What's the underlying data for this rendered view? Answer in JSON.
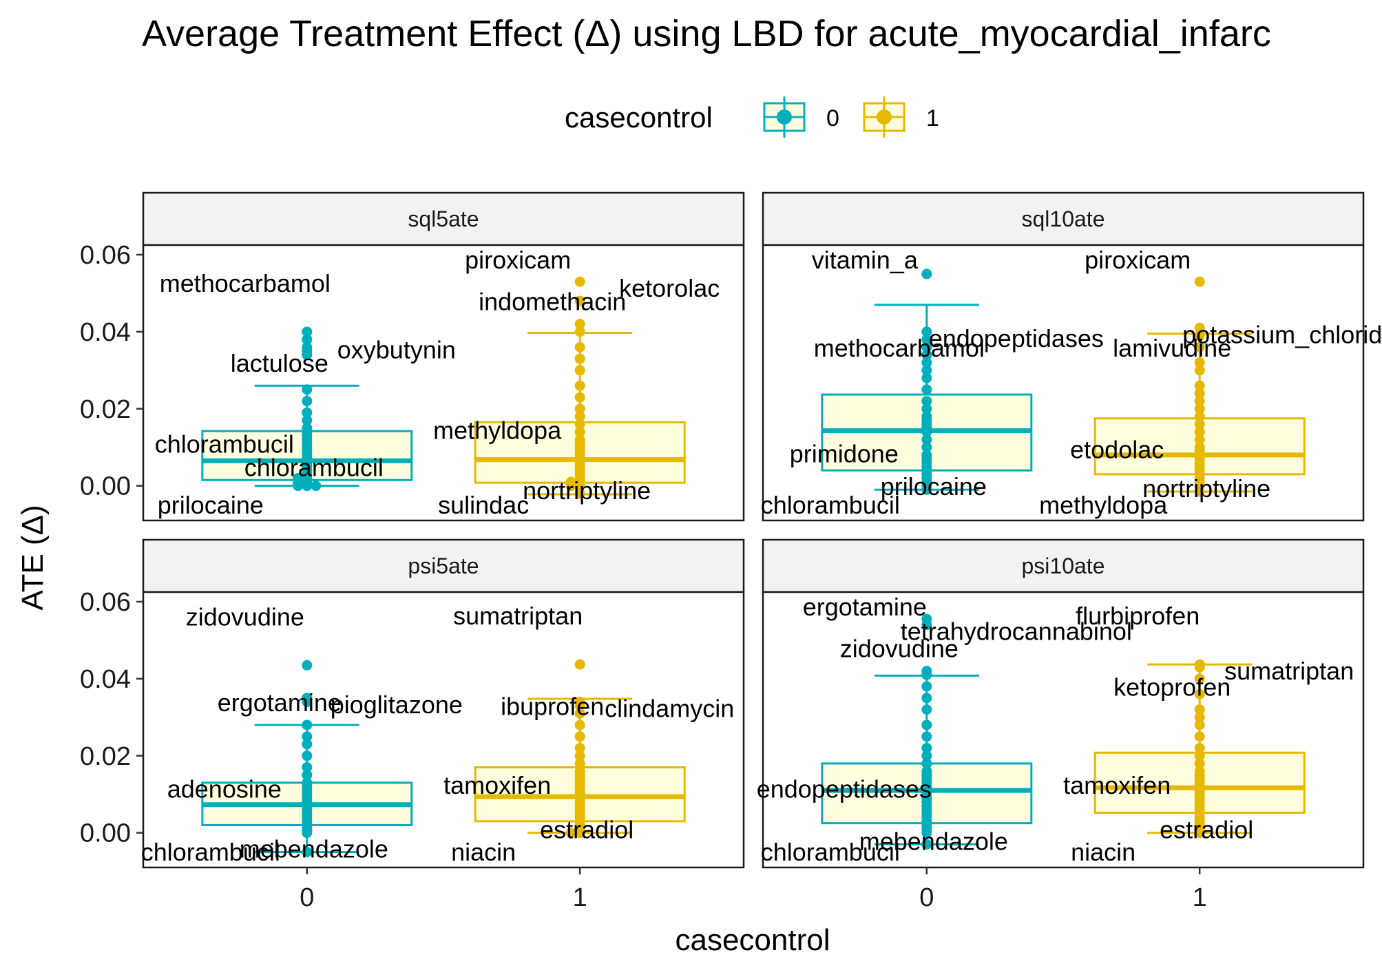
{
  "chart_data": {
    "type": "boxplot",
    "title": "Average Treatment Effect (Δ) using LBD for acute_myocardial_infarc",
    "xlabel": "casecontrol",
    "ylabel": "ATE (Δ)",
    "categories": [
      "0",
      "1"
    ],
    "ylim": [
      -0.009,
      0.0625
    ],
    "yticks": [
      0.0,
      0.02,
      0.04,
      0.06
    ],
    "ytick_labels": [
      "0.00",
      "0.02",
      "0.04",
      "0.06"
    ],
    "grid": false,
    "legend": {
      "title": "casecontrol",
      "position": "top",
      "entries": [
        {
          "label": "0",
          "color": "#00AFBB"
        },
        {
          "label": "1",
          "color": "#E7B800"
        }
      ]
    },
    "box_fill": "#FFFFE0",
    "panels": [
      {
        "name": "sql5ate",
        "groups": [
          {
            "category": "0",
            "color": "#00AFBB",
            "box": {
              "q1": 0.0015,
              "median": 0.0065,
              "q3": 0.0142,
              "whisker_low": 0.0,
              "whisker_high": 0.026
            },
            "points": [
              0.0,
              0.0,
              0.0,
              0.0005,
              0.0005,
              0.001,
              0.001,
              0.0015,
              0.002,
              0.002,
              0.003,
              0.004,
              0.005,
              0.006,
              0.007,
              0.008,
              0.009,
              0.01,
              0.011,
              0.012,
              0.013,
              0.014,
              0.015,
              0.017,
              0.019,
              0.022,
              0.025,
              0.034,
              0.035,
              0.036,
              0.038,
              0.04
            ],
            "annotations": [
              {
                "text": "methocarbamol",
                "y": 0.04
              },
              {
                "text": "oxybutynin",
                "y": 0.037
              },
              {
                "text": "lactulose",
                "y": 0.026
              },
              {
                "text": "chlorambucil",
                "y": 0.0065
              },
              {
                "text": "chlorambucil",
                "y": 0.004
              },
              {
                "text": "prilocaine",
                "y": 0.0
              }
            ]
          },
          {
            "category": "1",
            "color": "#E7B800",
            "box": {
              "q1": 0.0008,
              "median": 0.0068,
              "q3": 0.0165,
              "whisker_low": -0.0022,
              "whisker_high": 0.0397
            },
            "points": [
              -0.002,
              0.0,
              0.0,
              0.0005,
              0.001,
              0.001,
              0.002,
              0.003,
              0.004,
              0.005,
              0.006,
              0.007,
              0.008,
              0.009,
              0.01,
              0.011,
              0.012,
              0.014,
              0.016,
              0.018,
              0.02,
              0.023,
              0.026,
              0.03,
              0.033,
              0.036,
              0.04,
              0.042,
              0.048,
              0.053
            ],
            "annotations": [
              {
                "text": "piroxicam",
                "y": 0.053
              },
              {
                "text": "ketorolac",
                "y": 0.053
              },
              {
                "text": "indomethacin",
                "y": 0.042
              },
              {
                "text": "methyldopa",
                "y": 0.01
              },
              {
                "text": "nortriptyline",
                "y": -0.002
              },
              {
                "text": "sulindac",
                "y": -0.002
              }
            ]
          }
        ]
      },
      {
        "name": "sql10ate",
        "groups": [
          {
            "category": "0",
            "color": "#00AFBB",
            "box": {
              "q1": 0.004,
              "median": 0.0143,
              "q3": 0.0237,
              "whisker_low": -0.001,
              "whisker_high": 0.047
            },
            "points": [
              -0.001,
              0.0,
              0.001,
              0.002,
              0.003,
              0.004,
              0.005,
              0.006,
              0.007,
              0.008,
              0.01,
              0.012,
              0.014,
              0.015,
              0.016,
              0.017,
              0.018,
              0.02,
              0.022,
              0.025,
              0.028,
              0.03,
              0.032,
              0.034,
              0.036,
              0.038,
              0.04,
              0.055
            ],
            "annotations": [
              {
                "text": "vitamin_a",
                "y": 0.055
              },
              {
                "text": "endopeptidases",
                "y": 0.04
              },
              {
                "text": "methocarbamol",
                "y": 0.03
              },
              {
                "text": "primidone",
                "y": 0.004
              },
              {
                "text": "prilocaine",
                "y": -0.001
              },
              {
                "text": "chlorambucil",
                "y": -0.001
              }
            ]
          },
          {
            "category": "1",
            "color": "#E7B800",
            "box": {
              "q1": 0.003,
              "median": 0.008,
              "q3": 0.0175,
              "whisker_low": -0.0015,
              "whisker_high": 0.0395
            },
            "points": [
              -0.0015,
              0.0,
              0.001,
              0.002,
              0.003,
              0.004,
              0.005,
              0.006,
              0.007,
              0.008,
              0.009,
              0.01,
              0.012,
              0.014,
              0.016,
              0.018,
              0.02,
              0.022,
              0.024,
              0.026,
              0.03,
              0.032,
              0.036,
              0.039,
              0.041,
              0.053
            ],
            "annotations": [
              {
                "text": "piroxicam",
                "y": 0.053
              },
              {
                "text": "potassium_chloride",
                "y": 0.041
              },
              {
                "text": "lamivudine",
                "y": 0.03
              },
              {
                "text": "etodolac",
                "y": 0.005
              },
              {
                "text": "nortriptyline",
                "y": -0.0015
              },
              {
                "text": "methyldopa",
                "y": -0.0015
              }
            ]
          }
        ]
      },
      {
        "name": "psi5ate",
        "groups": [
          {
            "category": "0",
            "color": "#00AFBB",
            "box": {
              "q1": 0.002,
              "median": 0.0073,
              "q3": 0.013,
              "whisker_low": -0.005,
              "whisker_high": 0.028
            },
            "points": [
              -0.005,
              0.0,
              0.0005,
              0.001,
              0.002,
              0.003,
              0.004,
              0.005,
              0.006,
              0.007,
              0.008,
              0.009,
              0.01,
              0.011,
              0.012,
              0.013,
              0.015,
              0.017,
              0.02,
              0.023,
              0.025,
              0.028,
              0.034,
              0.035,
              0.0435
            ],
            "annotations": [
              {
                "text": "zidovudine",
                "y": 0.0435
              },
              {
                "text": "pioglitazone",
                "y": 0.035
              },
              {
                "text": "ergotamine",
                "y": 0.028
              },
              {
                "text": "adenosine",
                "y": 0.007
              },
              {
                "text": "mebendazole",
                "y": -0.005
              },
              {
                "text": "chlorambucil",
                "y": -0.005
              }
            ]
          },
          {
            "category": "1",
            "color": "#E7B800",
            "box": {
              "q1": 0.003,
              "median": 0.0094,
              "q3": 0.017,
              "whisker_low": 0.0,
              "whisker_high": 0.0348
            },
            "points": [
              0.0,
              0.0,
              0.0005,
              0.001,
              0.002,
              0.003,
              0.004,
              0.005,
              0.006,
              0.007,
              0.008,
              0.009,
              0.01,
              0.011,
              0.012,
              0.013,
              0.014,
              0.015,
              0.016,
              0.018,
              0.02,
              0.022,
              0.025,
              0.028,
              0.031,
              0.033,
              0.034,
              0.0437
            ],
            "annotations": [
              {
                "text": "sumatriptan",
                "y": 0.0437
              },
              {
                "text": "clindamycin",
                "y": 0.034
              },
              {
                "text": "ibuprofen",
                "y": 0.027
              },
              {
                "text": "tamoxifen",
                "y": 0.008
              },
              {
                "text": "estradiol",
                "y": 0.0
              },
              {
                "text": "niacin",
                "y": 0.0
              }
            ]
          }
        ]
      },
      {
        "name": "psi10ate",
        "groups": [
          {
            "category": "0",
            "color": "#00AFBB",
            "box": {
              "q1": 0.0025,
              "median": 0.011,
              "q3": 0.018,
              "whisker_low": -0.003,
              "whisker_high": 0.0408
            },
            "points": [
              -0.003,
              0.0,
              0.001,
              0.002,
              0.003,
              0.004,
              0.005,
              0.006,
              0.007,
              0.008,
              0.009,
              0.01,
              0.011,
              0.012,
              0.013,
              0.014,
              0.015,
              0.016,
              0.018,
              0.02,
              0.022,
              0.025,
              0.028,
              0.032,
              0.035,
              0.038,
              0.041,
              0.042,
              0.054,
              0.0555
            ],
            "annotations": [
              {
                "text": "ergotamine",
                "y": 0.0555
              },
              {
                "text": "tetrahydrocannabinol",
                "y": 0.054
              },
              {
                "text": "zidovudine",
                "y": 0.042
              },
              {
                "text": "endopeptidases",
                "y": 0.007
              },
              {
                "text": "mebendazole",
                "y": -0.003
              },
              {
                "text": "chlorambucil",
                "y": -0.003
              }
            ]
          },
          {
            "category": "1",
            "color": "#E7B800",
            "box": {
              "q1": 0.0052,
              "median": 0.0117,
              "q3": 0.0208,
              "whisker_low": 0.0,
              "whisker_high": 0.0437
            },
            "points": [
              0.0,
              0.0005,
              0.001,
              0.002,
              0.003,
              0.004,
              0.005,
              0.006,
              0.007,
              0.008,
              0.009,
              0.01,
              0.011,
              0.012,
              0.013,
              0.014,
              0.015,
              0.016,
              0.018,
              0.02,
              0.022,
              0.025,
              0.028,
              0.03,
              0.032,
              0.036,
              0.04,
              0.043,
              0.0437
            ],
            "annotations": [
              {
                "text": "flurbiprofen",
                "y": 0.0437
              },
              {
                "text": "sumatriptan",
                "y": 0.0437
              },
              {
                "text": "ketoprofen",
                "y": 0.032
              },
              {
                "text": "tamoxifen",
                "y": 0.008
              },
              {
                "text": "estradiol",
                "y": 0.0
              },
              {
                "text": "niacin",
                "y": 0.0
              }
            ]
          }
        ]
      }
    ]
  }
}
